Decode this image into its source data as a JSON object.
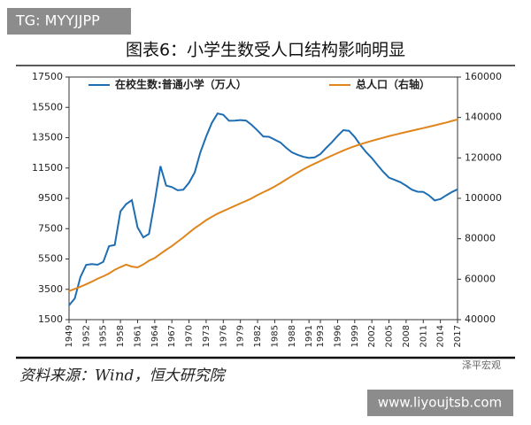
{
  "badge": "TG: MYYJJPP",
  "chart_data": {
    "type": "line",
    "title": "图表6：小学生数受人口结构影响明显",
    "source": "资料来源：Wind，恒大研究院",
    "watermark": "泽平宏观",
    "x": [
      1949,
      1950,
      1951,
      1952,
      1953,
      1954,
      1955,
      1956,
      1957,
      1958,
      1959,
      1960,
      1961,
      1962,
      1963,
      1964,
      1965,
      1966,
      1967,
      1968,
      1969,
      1970,
      1971,
      1972,
      1973,
      1974,
      1975,
      1976,
      1977,
      1978,
      1979,
      1980,
      1981,
      1982,
      1983,
      1984,
      1985,
      1986,
      1987,
      1988,
      1989,
      1990,
      1991,
      1992,
      1993,
      1994,
      1995,
      1996,
      1997,
      1998,
      1999,
      2000,
      2001,
      2002,
      2003,
      2004,
      2005,
      2006,
      2007,
      2008,
      2009,
      2010,
      2011,
      2012,
      2013,
      2014,
      2015,
      2016,
      2017
    ],
    "series": [
      {
        "name": "在校生数:普通小学（万人）",
        "color": "#1f6db3",
        "values": [
          2439,
          2892,
          4315,
          5110,
          5166,
          5121,
          5312,
          6346,
          6428,
          8640,
          9118,
          9379,
          7579,
          6924,
          7157,
          9295,
          11621,
          10342,
          10244,
          10036,
          10067,
          10528,
          11211,
          12550,
          13570,
          14481,
          15094,
          15006,
          14618,
          14624,
          14663,
          14627,
          14333,
          13972,
          13578,
          13557,
          13370,
          13183,
          12836,
          12536,
          12373,
          12241,
          12164,
          12201,
          12421,
          12822,
          13195,
          13615,
          13995,
          13954,
          13548,
          13013,
          12544,
          12157,
          11690,
          11246,
          10864,
          10712,
          10564,
          10332,
          10072,
          9941,
          9926,
          9696,
          9361,
          9451,
          9692,
          9913,
          10094
        ]
      },
      {
        "name": "总人口（右轴）",
        "color": "#e0851c",
        "axis": "y2",
        "values": [
          54167,
          55196,
          56300,
          57482,
          58796,
          60266,
          61465,
          62828,
          64653,
          65994,
          67207,
          66207,
          65859,
          67295,
          69172,
          70499,
          72538,
          74542,
          76368,
          78534,
          80671,
          82992,
          85229,
          87177,
          89211,
          90859,
          92420,
          93717,
          94974,
          96259,
          97542,
          98705,
          100072,
          101654,
          103008,
          104357,
          105851,
          107507,
          109300,
          111026,
          112704,
          114333,
          115823,
          117171,
          118517,
          119850,
          121121,
          122389,
          123626,
          124761,
          125786,
          126743,
          127627,
          128453,
          129227,
          129988,
          130756,
          131448,
          132129,
          132802,
          133450,
          134091,
          134735,
          135404,
          136072,
          136782,
          137462,
          138271,
          139008
        ]
      }
    ],
    "xlim": [
      1949,
      2017
    ],
    "xticks": [
      1949,
      1952,
      1955,
      1958,
      1961,
      1964,
      1967,
      1970,
      1973,
      1976,
      1979,
      1982,
      1985,
      1988,
      1991,
      1993,
      1996,
      1999,
      2002,
      2005,
      2008,
      2011,
      2014,
      2017
    ],
    "ylim": [
      1500,
      17500
    ],
    "yticks": [
      1500,
      3500,
      5500,
      7500,
      9500,
      11500,
      13500,
      15500,
      17500
    ],
    "y2lim": [
      40000,
      160000
    ],
    "y2ticks": [
      40000,
      60000,
      80000,
      100000,
      120000,
      140000,
      160000
    ]
  },
  "footer_url": "www.liyoujtsb.com"
}
